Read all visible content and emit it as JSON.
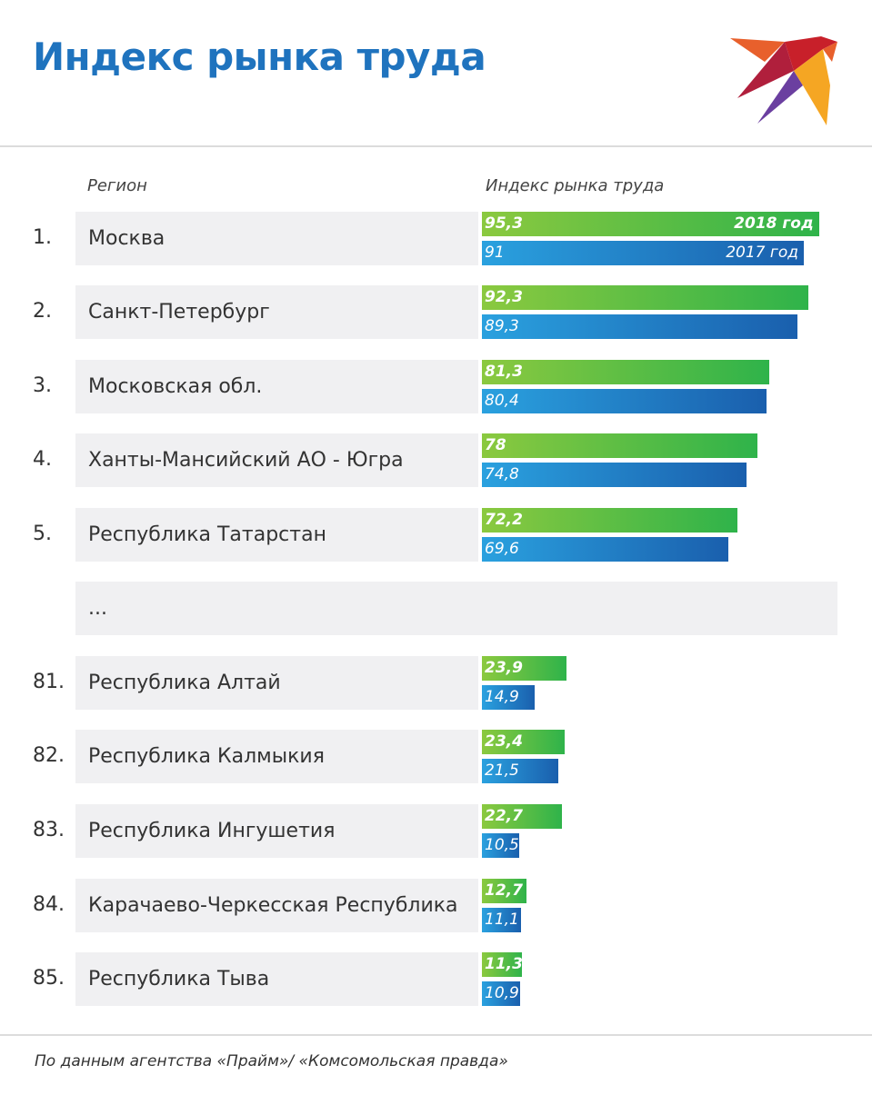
{
  "title": "Индекс рынка труда",
  "headers": {
    "region": "Регион",
    "index": "Индекс рынка труда"
  },
  "legend": {
    "year2018": "2018 год",
    "year2017": "2017 год"
  },
  "ellipsis": "...",
  "source": "По данным агентства «Прайм»/ «Комсомольская правда»",
  "colors": {
    "title": "#1f73be",
    "green_start": "#8bc93f",
    "green_end": "#2fb34a",
    "blue_start": "#2aa1df",
    "blue_end": "#1a5fad"
  },
  "chart_data": {
    "type": "bar",
    "orientation": "horizontal",
    "title": "Индекс рынка труда",
    "xlim": [
      0,
      100
    ],
    "series": [
      {
        "name": "2018 год",
        "values": [
          95.3,
          92.3,
          81.3,
          78,
          72.2,
          23.9,
          23.4,
          22.7,
          12.7,
          11.3
        ]
      },
      {
        "name": "2017 год",
        "values": [
          91,
          89.3,
          80.4,
          74.8,
          69.6,
          14.9,
          21.5,
          10.5,
          11.1,
          10.9
        ]
      }
    ],
    "rows": [
      {
        "rank": "1.",
        "region": "Москва",
        "v2018": 95.3,
        "v2017": 91,
        "l2018": "95,3",
        "l2017": "91"
      },
      {
        "rank": "2.",
        "region": "Санкт-Петербург",
        "v2018": 92.3,
        "v2017": 89.3,
        "l2018": "92,3",
        "l2017": "89,3"
      },
      {
        "rank": "3.",
        "region": "Московская обл.",
        "v2018": 81.3,
        "v2017": 80.4,
        "l2018": "81,3",
        "l2017": "80,4"
      },
      {
        "rank": "4.",
        "region": "Ханты-Мансийский АО - Югра",
        "v2018": 78,
        "v2017": 74.8,
        "l2018": "78",
        "l2017": "74,8"
      },
      {
        "rank": "5.",
        "region": "Республика Татарстан",
        "v2018": 72.2,
        "v2017": 69.6,
        "l2018": "72,2",
        "l2017": "69,6"
      },
      {
        "rank": "81.",
        "region": "Республика Алтай",
        "v2018": 23.9,
        "v2017": 14.9,
        "l2018": "23,9",
        "l2017": "14,9"
      },
      {
        "rank": "82.",
        "region": "Республика Калмыкия",
        "v2018": 23.4,
        "v2017": 21.5,
        "l2018": "23,4",
        "l2017": "21,5"
      },
      {
        "rank": "83.",
        "region": "Республика Ингушетия",
        "v2018": 22.7,
        "v2017": 10.5,
        "l2018": "22,7",
        "l2017": "10,5"
      },
      {
        "rank": "84.",
        "region": "Карачаево-Черкесская Республика",
        "v2018": 12.7,
        "v2017": 11.1,
        "l2018": "12,7",
        "l2017": "11,1"
      },
      {
        "rank": "85.",
        "region": "Республика Тыва",
        "v2018": 11.3,
        "v2017": 10.9,
        "l2018": "11,3",
        "l2017": "10,9"
      }
    ]
  }
}
